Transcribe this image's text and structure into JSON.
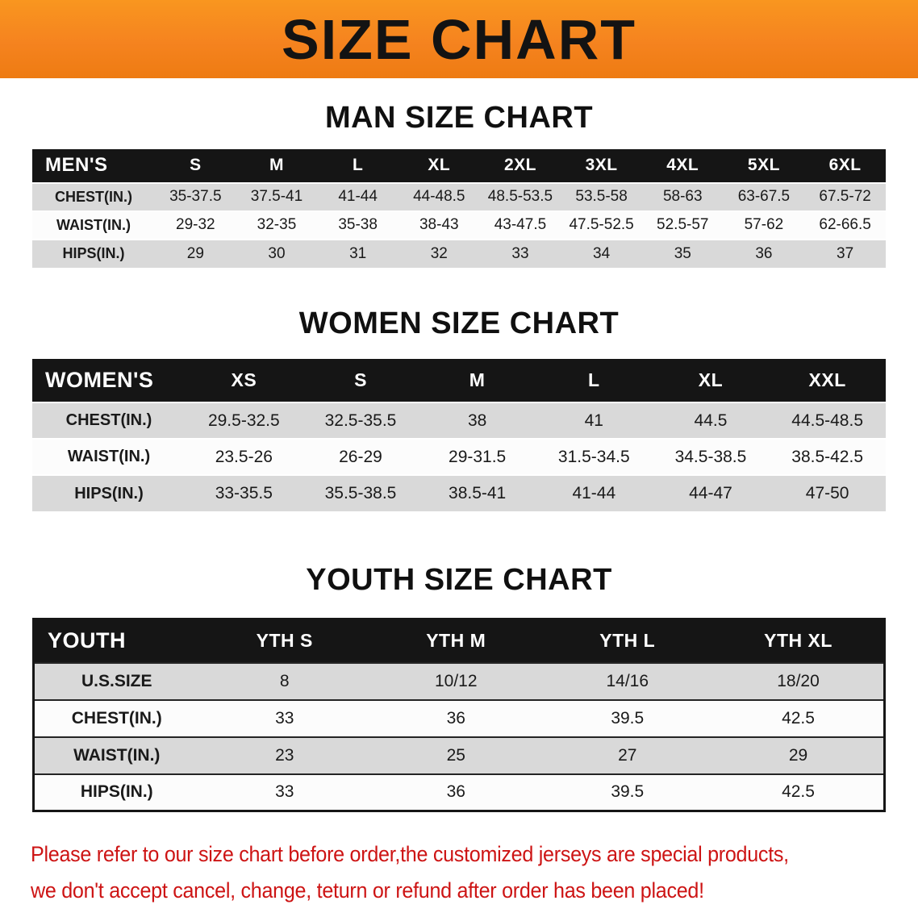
{
  "banner": {
    "title": "SIZE CHART"
  },
  "men": {
    "heading": "MAN SIZE CHART",
    "table": {
      "header": [
        "MEN'S",
        "S",
        "M",
        "L",
        "XL",
        "2XL",
        "3XL",
        "4XL",
        "5XL",
        "6XL"
      ],
      "rows": [
        [
          "CHEST(IN.)",
          "35-37.5",
          "37.5-41",
          "41-44",
          "44-48.5",
          "48.5-53.5",
          "53.5-58",
          "58-63",
          "63-67.5",
          "67.5-72"
        ],
        [
          "WAIST(IN.)",
          "29-32",
          "32-35",
          "35-38",
          "38-43",
          "43-47.5",
          "47.5-52.5",
          "52.5-57",
          "57-62",
          "62-66.5"
        ],
        [
          "HIPS(IN.)",
          "29",
          "30",
          "31",
          "32",
          "33",
          "34",
          "35",
          "36",
          "37"
        ]
      ]
    }
  },
  "women": {
    "heading": "WOMEN SIZE CHART",
    "table": {
      "header": [
        "WOMEN'S",
        "XS",
        "S",
        "M",
        "L",
        "XL",
        "XXL"
      ],
      "rows": [
        [
          "CHEST(IN.)",
          "29.5-32.5",
          "32.5-35.5",
          "38",
          "41",
          "44.5",
          "44.5-48.5"
        ],
        [
          "WAIST(IN.)",
          "23.5-26",
          "26-29",
          "29-31.5",
          "31.5-34.5",
          "34.5-38.5",
          "38.5-42.5"
        ],
        [
          "HIPS(IN.)",
          "33-35.5",
          "35.5-38.5",
          "38.5-41",
          "41-44",
          "44-47",
          "47-50"
        ]
      ]
    }
  },
  "youth": {
    "heading": "YOUTH SIZE CHART",
    "table": {
      "header": [
        "YOUTH",
        "YTH S",
        "YTH M",
        "YTH L",
        "YTH XL"
      ],
      "rows": [
        [
          "U.S.SIZE",
          "8",
          "10/12",
          "14/16",
          "18/20"
        ],
        [
          "CHEST(IN.)",
          "33",
          "36",
          "39.5",
          "42.5"
        ],
        [
          "WAIST(IN.)",
          "23",
          "25",
          "27",
          "29"
        ],
        [
          "HIPS(IN.)",
          "33",
          "36",
          "39.5",
          "42.5"
        ]
      ]
    }
  },
  "footer": {
    "line1": "Please refer to our size chart before order,the customized jerseys are special products,",
    "line2": "we don't accept cancel, change, teturn or refund after order has been placed!"
  },
  "colors": {
    "banner_orange": "#F5831F",
    "table_header_black": "#151515",
    "row_gray": "#D9D9D9",
    "note_red": "#CD1414"
  }
}
